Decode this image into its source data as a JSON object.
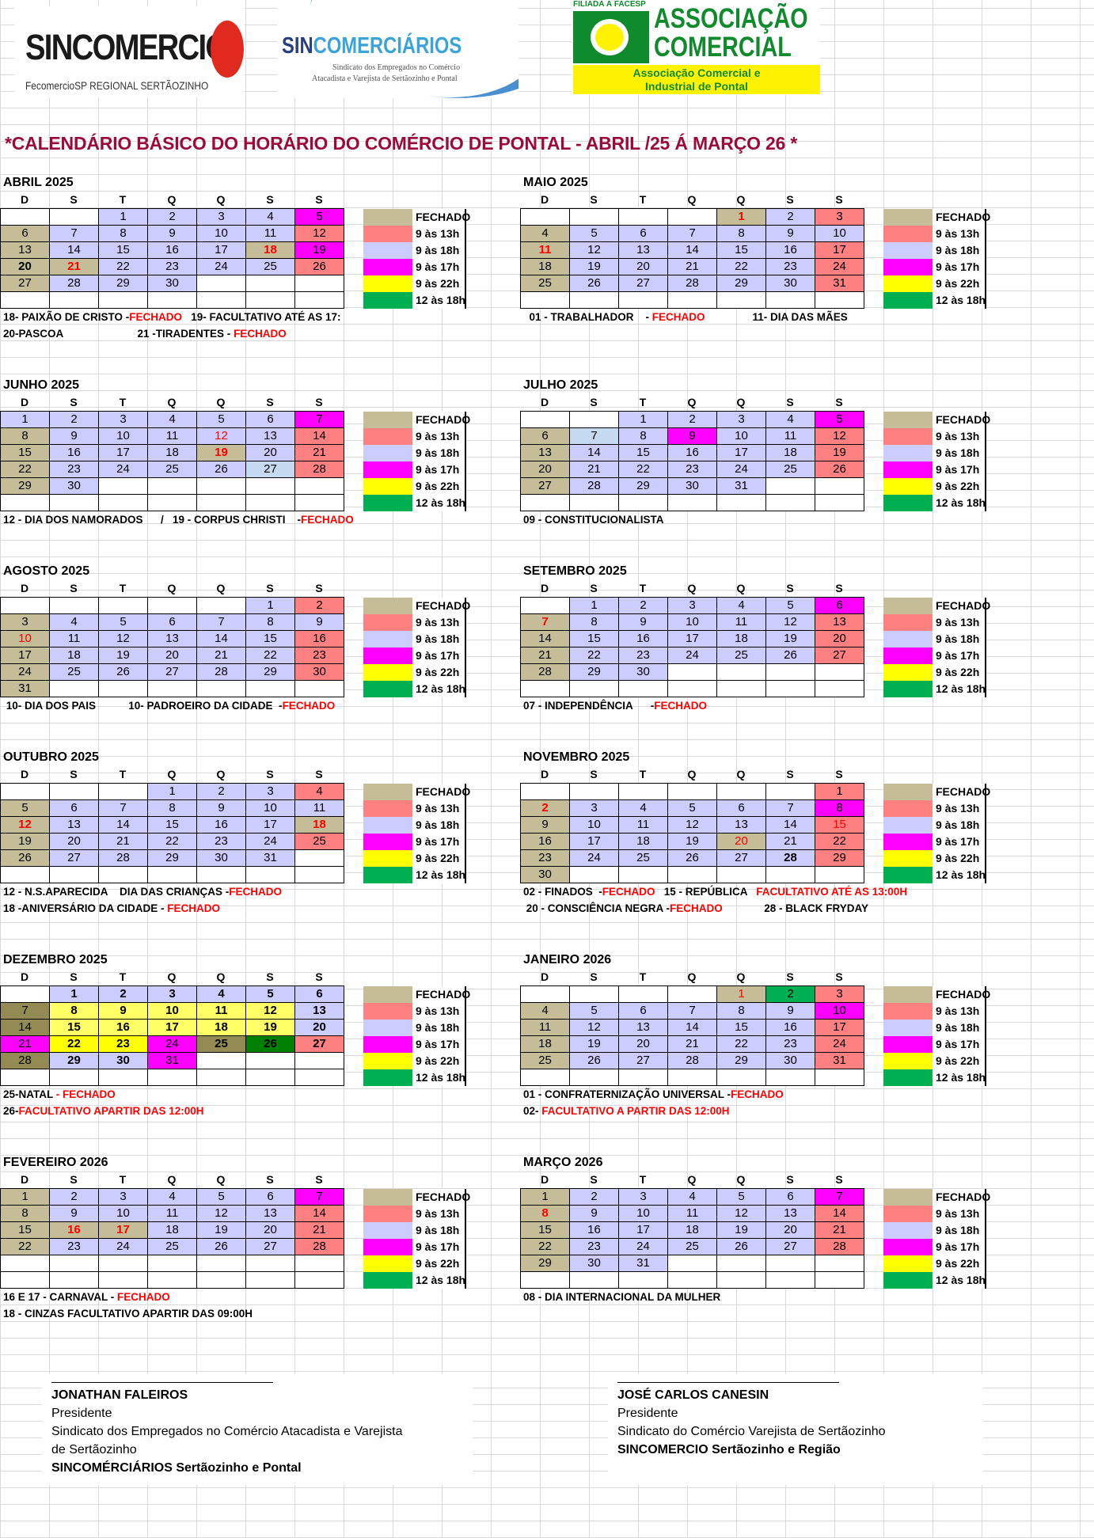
{
  "logos": {
    "sincomercio": {
      "name": "SINCOMERCIO",
      "sub": "FecomercioSP REGIONAL SERTÃOZINHO",
      "color": "#e02a1f"
    },
    "sincomerciarios": {
      "name_a": "SIN",
      "name_b": "COMERCIÁRIOS",
      "sub1": "Sindicato dos Empregados no Comércio",
      "sub2": "Atacadista e Varejista de Sertãozinho e Pontal"
    },
    "associacao": {
      "filiada": "FILIADA À FACESP",
      "line1": "ASSOCIAÇÃO",
      "line2": "COMERCIAL",
      "box1": "Associação Comercial e",
      "box2": "Industrial de Pontal"
    }
  },
  "title": "*CALENDÁRIO BÁSICO DO HORÁRIO DO COMÉRCIO DE PONTAL - ABRIL /25 Á MARÇO 26 *",
  "weekdays": [
    "D",
    "S",
    "T",
    "Q",
    "Q",
    "S",
    "S"
  ],
  "colors": {
    "F": "#c4bd97",
    "P": "#ff8080",
    "L": "#ccccff",
    "M": "#ff00ff",
    "Y": "#ffff00",
    "G": "#00b050",
    "B": "#c5d9f1",
    "O": "#948a54",
    "W": "#ffff66",
    "D": "#008000"
  },
  "legend": [
    {
      "label": "FECHADO",
      "color": "#c4bd97"
    },
    {
      "label": "9 às 13h",
      "color": "#ff8080"
    },
    {
      "label": "9 às 18h",
      "color": "#ccccff"
    },
    {
      "label": "9 às 17h",
      "color": "#ff00ff"
    },
    {
      "label": "9 às 22h",
      "color": "#ffff00"
    },
    {
      "label": "12 às 18h",
      "color": "#00b050"
    }
  ],
  "months": [
    {
      "title": "ABRIL 2025",
      "weeks": [
        [
          "",
          "",
          "1L",
          "2L",
          "3L",
          "4L",
          "5M"
        ],
        [
          "6F",
          "7L",
          "8L",
          "9L",
          "10L",
          "11L",
          "12P"
        ],
        [
          "13F",
          "14L",
          "15L",
          "16L",
          "17L",
          "18Frb",
          "19M"
        ],
        [
          "20Fb",
          "21Frb",
          "22L",
          "23L",
          "24L",
          "25L",
          "26P"
        ],
        [
          "27F",
          "28L",
          "29L",
          "30L",
          "",
          "",
          ""
        ],
        [
          "",
          "",
          "",
          "",
          "",
          "",
          ""
        ]
      ],
      "notes": [
        [
          {
            "t": "18- PAIXÃO DE CRISTO -"
          },
          {
            "t": "FECHADO",
            "red": true
          },
          {
            "t": "   19- FACULTATIVO ATÉ AS 17:"
          }
        ],
        [
          {
            "t": "20-PASCOA                         21 -TIRADENTES - "
          },
          {
            "t": "FECHADO",
            "red": true
          }
        ]
      ]
    },
    {
      "title": "MAIO 2025",
      "weeks": [
        [
          "",
          "",
          "",
          "",
          "1Frb",
          "2L",
          "3P"
        ],
        [
          "4F",
          "5L",
          "6L",
          "7L",
          "8L",
          "9L",
          "10L"
        ],
        [
          "11Frb",
          "12L",
          "13L",
          "14L",
          "15L",
          "16L",
          "17P"
        ],
        [
          "18F",
          "19L",
          "20L",
          "21L",
          "22L",
          "23L",
          "24P"
        ],
        [
          "25F",
          "26L",
          "27L",
          "28L",
          "29L",
          "30L",
          "31P"
        ],
        [
          "",
          "",
          "",
          "",
          "",
          "",
          ""
        ]
      ],
      "notes": [
        [
          {
            "t": "  01 - TRABALHADOR    - "
          },
          {
            "t": "FECHADO",
            "red": true
          },
          {
            "t": "                11- DIA DAS MÃES"
          }
        ]
      ]
    },
    {
      "title": "JUNHO 2025",
      "weeks": [
        [
          "1L",
          "2L",
          "3L",
          "4L",
          "5L",
          "6L",
          "7M"
        ],
        [
          "8F",
          "9L",
          "10L",
          "11L",
          "12Lr",
          "13L",
          "14P"
        ],
        [
          "15F",
          "16L",
          "17L",
          "18L",
          "19Frb",
          "20L",
          "21P"
        ],
        [
          "22F",
          "23L",
          "24L",
          "25L",
          "26L",
          "27B",
          "28P"
        ],
        [
          "29F",
          "30L",
          "",
          "",
          "",
          "",
          ""
        ],
        [
          "",
          "",
          "",
          "",
          "",
          "",
          ""
        ]
      ],
      "notes": [
        [
          {
            "t": "12 - DIA DOS NAMORADOS      /   19 - CORPUS CHRISTI    -"
          },
          {
            "t": "FECHADO",
            "red": true
          }
        ]
      ]
    },
    {
      "title": "JULHO 2025",
      "weeks": [
        [
          "",
          "",
          "1L",
          "2L",
          "3L",
          "4L",
          "5M"
        ],
        [
          "6F",
          "7B",
          "8L",
          "9M",
          "10L",
          "11L",
          "12P"
        ],
        [
          "13F",
          "14L",
          "15L",
          "16L",
          "17L",
          "18L",
          "19P"
        ],
        [
          "20F",
          "21L",
          "22L",
          "23L",
          "24L",
          "25L",
          "26P"
        ],
        [
          "27F",
          "28L",
          "29L",
          "30L",
          "31L",
          "",
          ""
        ],
        [
          "",
          "",
          "",
          "",
          "",
          "",
          ""
        ]
      ],
      "notes": [
        [
          {
            "t": "09 - CONSTITUCIONALISTA"
          }
        ]
      ]
    },
    {
      "title": "AGOSTO 2025",
      "weeks": [
        [
          "",
          "",
          "",
          "",
          "",
          "1L",
          "2P"
        ],
        [
          "3F",
          "4L",
          "5L",
          "6L",
          "7L",
          "8L",
          "9L"
        ],
        [
          "10Fr",
          "11L",
          "12L",
          "13L",
          "14L",
          "15L",
          "16P"
        ],
        [
          "17F",
          "18L",
          "19L",
          "20L",
          "21L",
          "22L",
          "23P"
        ],
        [
          "24F",
          "25L",
          "26L",
          "27L",
          "28L",
          "29L",
          "30P"
        ],
        [
          "31F",
          "",
          "",
          "",
          "",
          "",
          ""
        ]
      ],
      "notes": [
        [
          {
            "t": " 10- DIA DOS PAIS           10- PADROEIRO DA CIDADE  -"
          },
          {
            "t": "FECHADO",
            "red": true
          }
        ]
      ]
    },
    {
      "title": "SETEMBRO 2025",
      "weeks": [
        [
          "",
          "1L",
          "2L",
          "3L",
          "4L",
          "5L",
          "6M"
        ],
        [
          "7Frb",
          "8L",
          "9L",
          "10L",
          "11L",
          "12L",
          "13P"
        ],
        [
          "14F",
          "15L",
          "16L",
          "17L",
          "18L",
          "19L",
          "20P"
        ],
        [
          "21F",
          "22L",
          "23L",
          "24L",
          "25L",
          "26L",
          "27P"
        ],
        [
          "28F",
          "29L",
          "30L",
          "",
          "",
          "",
          ""
        ],
        [
          "",
          "",
          "",
          "",
          "",
          "",
          ""
        ]
      ],
      "notes": [
        [
          {
            "t": "07 - INDEPENDÊNCIA      -"
          },
          {
            "t": "FECHADO",
            "red": true
          }
        ]
      ]
    },
    {
      "title": "OUTUBRO 2025",
      "weeks": [
        [
          "",
          "",
          "",
          "1L",
          "2L",
          "3L",
          "4P"
        ],
        [
          "5F",
          "6L",
          "7L",
          "8L",
          "9L",
          "10L",
          "11L"
        ],
        [
          "12Frb",
          "13L",
          "14L",
          "15L",
          "16L",
          "17L",
          "18Frb"
        ],
        [
          "19F",
          "20L",
          "21L",
          "22L",
          "23L",
          "24L",
          "25P"
        ],
        [
          "26F",
          "27L",
          "28L",
          "29L",
          "30L",
          "31L",
          ""
        ],
        [
          "",
          "",
          "",
          "",
          "",
          "",
          ""
        ]
      ],
      "notes": [
        [
          {
            "t": "12 - N.S.APARECIDA    DIA DAS CRIANÇAS -"
          },
          {
            "t": "FECHADO",
            "red": true
          }
        ],
        [
          {
            "t": "18 -ANIVERSÁRIO DA CIDADE - "
          },
          {
            "t": "FECHADO",
            "red": true
          }
        ]
      ]
    },
    {
      "title": "NOVEMBRO 2025",
      "weeks": [
        [
          "",
          "",
          "",
          "",
          "",
          "",
          "1P"
        ],
        [
          "2Frb",
          "3L",
          "4L",
          "5L",
          "6L",
          "7L",
          "8M"
        ],
        [
          "9F",
          "10L",
          "11L",
          "12L",
          "13L",
          "14L",
          "15Pr"
        ],
        [
          "16F",
          "17L",
          "18L",
          "19L",
          "20Fr",
          "21L",
          "22P"
        ],
        [
          "23F",
          "24L",
          "25L",
          "26L",
          "27L",
          "28Lb",
          "29P"
        ],
        [
          "30F",
          "",
          "",
          "",
          "",
          "",
          ""
        ]
      ],
      "notes": [
        [
          {
            "t": "02 - FINADOS  -"
          },
          {
            "t": "FECHADO",
            "red": true
          },
          {
            "t": "   15 - REPÚBLICA   "
          },
          {
            "t": "FACULTATIVO ATÉ AS 13:00H",
            "red": true
          }
        ],
        [
          {
            "t": " 20 - CONSCIÊNCIA NEGRA -"
          },
          {
            "t": "FECHADO",
            "red": true
          },
          {
            "t": "              28 - BLACK FRYDAY"
          }
        ]
      ]
    },
    {
      "title": "DEZEMBRO 2025",
      "weeks": [
        [
          "",
          "1Lb",
          "2Lb",
          "3Lb",
          "4Lb",
          "5Lb",
          "6Lb"
        ],
        [
          "7O",
          "8Wb",
          "9Wb",
          "10Wb",
          "11Wb",
          "12Wb",
          "13Lb"
        ],
        [
          "14O",
          "15Wb",
          "16Wb",
          "17Wb",
          "18Wb",
          "19Wb",
          "20Lb"
        ],
        [
          "21M",
          "22Yb",
          "23Yb",
          "24M",
          "25Ob",
          "26Db",
          "27Pb"
        ],
        [
          "28O",
          "29Lb",
          "30Lb",
          "31M",
          "",
          "",
          ""
        ],
        [
          "",
          "",
          "",
          "",
          "",
          "",
          ""
        ]
      ],
      "notes": [
        [
          {
            "t": "25-NATAL "
          },
          {
            "t": "- FECHADO",
            "red": true
          }
        ],
        [
          {
            "t": "26-"
          },
          {
            "t": "FACULTATIVO APARTIR DAS 12:00H",
            "red": true
          }
        ]
      ]
    },
    {
      "title": "JANEIRO 2026",
      "weeks": [
        [
          "",
          "",
          "",
          "",
          "1Fr",
          "2G",
          "3P"
        ],
        [
          "4F",
          "5L",
          "6L",
          "7L",
          "8L",
          "9L",
          "10M"
        ],
        [
          "11F",
          "12L",
          "13L",
          "14L",
          "15L",
          "16L",
          "17P"
        ],
        [
          "18F",
          "19L",
          "20L",
          "21L",
          "22L",
          "23L",
          "24P"
        ],
        [
          "25F",
          "26L",
          "27L",
          "28L",
          "29L",
          "30L",
          "31P"
        ],
        [
          "",
          "",
          "",
          "",
          "",
          "",
          ""
        ]
      ],
      "notes": [
        [
          {
            "t": "01 - CONFRATERNIZAÇÃO UNIVERSAL -"
          },
          {
            "t": "FECHADO",
            "red": true
          }
        ],
        [
          {
            "t": "02- "
          },
          {
            "t": "FACULTATIVO A PARTIR DAS 12:00H",
            "red": true
          }
        ]
      ]
    },
    {
      "title": "FEVEREIRO 2026",
      "weeks": [
        [
          "1F",
          "2L",
          "3L",
          "4L",
          "5L",
          "6L",
          "7M"
        ],
        [
          "8F",
          "9L",
          "10L",
          "11L",
          "12L",
          "13L",
          "14P"
        ],
        [
          "15F",
          "16Frb",
          "17Frb",
          "18L",
          "19L",
          "20L",
          "21P"
        ],
        [
          "22F",
          "23L",
          "24L",
          "25L",
          "26L",
          "27L",
          "28P"
        ],
        [
          "",
          "",
          "",
          "",
          "",
          "",
          ""
        ],
        [
          "",
          "",
          "",
          "",
          "",
          "",
          ""
        ]
      ],
      "notes": [
        [
          {
            "t": "16 E 17 - CARNAVAL - "
          },
          {
            "t": "FECHADO",
            "red": true
          }
        ],
        [
          {
            "t": "18 - CINZAS FACULTATIVO APARTIR DAS 09:00H"
          }
        ]
      ]
    },
    {
      "title": "MARÇO 2026",
      "weeks": [
        [
          "1F",
          "2L",
          "3L",
          "4L",
          "5L",
          "6L",
          "7M"
        ],
        [
          "8Frb",
          "9L",
          "10L",
          "11L",
          "12L",
          "13L",
          "14P"
        ],
        [
          "15F",
          "16L",
          "17L",
          "18L",
          "19L",
          "20L",
          "21P"
        ],
        [
          "22F",
          "23L",
          "24L",
          "25L",
          "26L",
          "27L",
          "28P"
        ],
        [
          "29F",
          "30L",
          "31L",
          "",
          "",
          "",
          ""
        ],
        [
          "",
          "",
          "",
          "",
          "",
          "",
          ""
        ]
      ],
      "notes": [
        [
          {
            "t": "08 - DIA INTERNACIONAL DA MULHER"
          }
        ]
      ]
    }
  ],
  "signatures": [
    {
      "name": "JONATHAN FALEIROS",
      "role": "Presidente",
      "org1": "Sindicato dos Empregados no Comércio Atacadista e Varejista",
      "org2": "de Sertãozinho",
      "org3": "SINCOMÉRCIÁRIOS Sertãozinho e Pontal"
    },
    {
      "name": "JOSÉ CARLOS CANESIN",
      "role": "Presidente",
      "org1": "Sindicato do Comércio Varejista de Sertãozinho",
      "org2": "SINCOMERCIO Sertãozinho e Região"
    }
  ]
}
